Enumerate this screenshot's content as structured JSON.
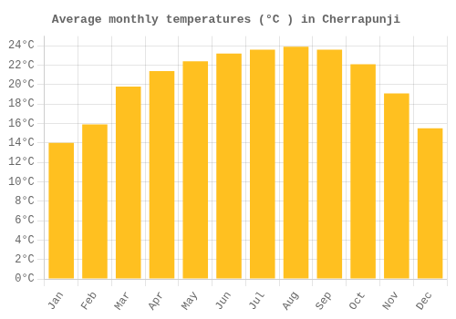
{
  "chart_data": {
    "type": "bar",
    "title": "Average monthly temperatures (°C ) in Cherrapunji",
    "categories": [
      "Jan",
      "Feb",
      "Mar",
      "Apr",
      "May",
      "Jun",
      "Jul",
      "Aug",
      "Sep",
      "Oct",
      "Nov",
      "Dec"
    ],
    "values": [
      14.0,
      15.9,
      19.8,
      21.4,
      22.4,
      23.2,
      23.6,
      23.9,
      23.6,
      22.1,
      19.1,
      15.5
    ],
    "color": "#FFC020",
    "ylim": [
      0,
      25
    ],
    "yticks": [
      {
        "value": 0,
        "label": "0°C"
      },
      {
        "value": 2,
        "label": "2°C"
      },
      {
        "value": 4,
        "label": "4°C"
      },
      {
        "value": 6,
        "label": "6°C"
      },
      {
        "value": 8,
        "label": "8°C"
      },
      {
        "value": 10,
        "label": "10°C"
      },
      {
        "value": 12,
        "label": "12°C"
      },
      {
        "value": 14,
        "label": "14°C"
      },
      {
        "value": 16,
        "label": "16°C"
      },
      {
        "value": 18,
        "label": "18°C"
      },
      {
        "value": 20,
        "label": "20°C"
      },
      {
        "value": 22,
        "label": "22°C"
      },
      {
        "value": 24,
        "label": "24°C"
      }
    ],
    "grid": true
  }
}
